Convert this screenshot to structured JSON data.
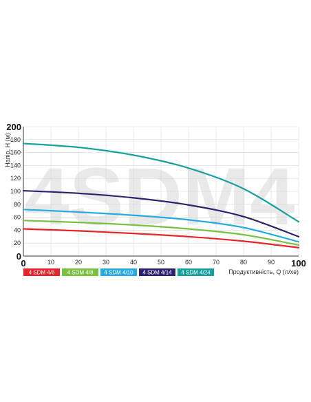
{
  "chart_data": {
    "type": "line",
    "watermark": "4SDM4",
    "xlabel": "Продуктивність, Q (л/хв)",
    "ylabel": "Напір, H (м)",
    "xlim": [
      0,
      100
    ],
    "ylim": [
      0,
      200
    ],
    "x_ticks": [
      "0",
      "10",
      "20",
      "30",
      "40",
      "50",
      "60",
      "70",
      "80",
      "90",
      "100"
    ],
    "y_ticks": [
      "0",
      "20",
      "40",
      "60",
      "80",
      "100",
      "120",
      "140",
      "160",
      "180",
      "200"
    ],
    "grid": true,
    "legend_position": "bottom-left",
    "series": [
      {
        "name": "4 SDM 4/6",
        "color": "#e8232a",
        "x": [
          0,
          20,
          40,
          60,
          80,
          100
        ],
        "values": [
          42,
          39,
          35,
          30,
          23,
          13
        ]
      },
      {
        "name": "4 SDM 4/8",
        "color": "#7ac143",
        "x": [
          0,
          20,
          40,
          60,
          80,
          100
        ],
        "values": [
          55,
          52,
          48,
          42,
          33,
          17
        ]
      },
      {
        "name": "4 SDM 4/10",
        "color": "#27aae1",
        "x": [
          0,
          20,
          40,
          60,
          80,
          100
        ],
        "values": [
          72,
          68,
          63,
          56,
          44,
          22
        ]
      },
      {
        "name": "4 SDM 4/14",
        "color": "#2b2370",
        "x": [
          0,
          20,
          40,
          60,
          80,
          100
        ],
        "values": [
          101,
          97,
          90,
          79,
          61,
          30
        ]
      },
      {
        "name": "4 SDM 4/24",
        "color": "#16a09e",
        "x": [
          0,
          20,
          40,
          60,
          80,
          100
        ],
        "values": [
          174,
          168,
          156,
          136,
          104,
          53
        ]
      }
    ]
  }
}
